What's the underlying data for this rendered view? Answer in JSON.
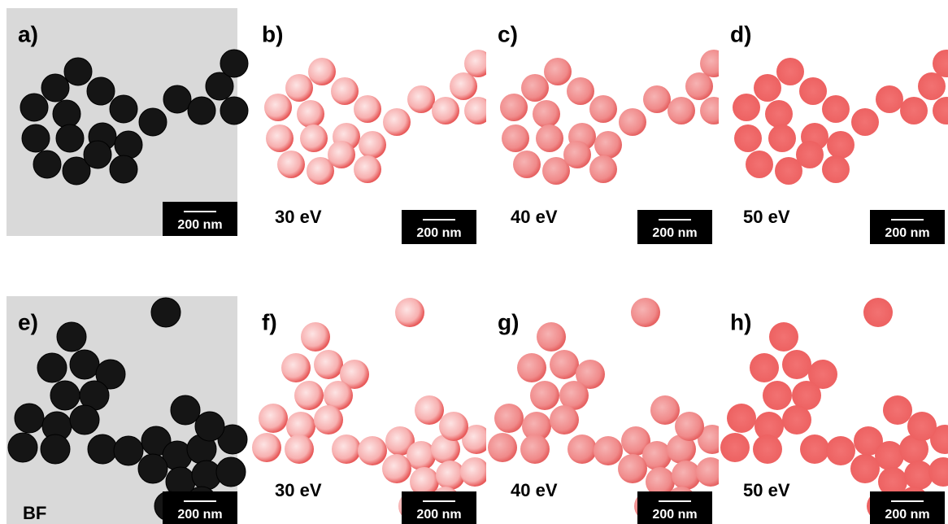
{
  "panels": [
    {
      "label": "a)",
      "scale_bar": "200 nm"
    },
    {
      "label": "b)",
      "caption": "30 eV",
      "scale_bar": "200 nm"
    },
    {
      "label": "c)",
      "caption": "40 eV",
      "scale_bar": "200 nm"
    },
    {
      "label": "d)",
      "caption": "50 eV",
      "scale_bar": "200 nm"
    },
    {
      "label": "e)",
      "caption": "BF",
      "scale_bar": "200 nm"
    },
    {
      "label": "f)",
      "caption": "30 eV",
      "scale_bar": "200 nm"
    },
    {
      "label": "g)",
      "caption": "40 eV",
      "scale_bar": "200 nm"
    },
    {
      "label": "h)",
      "caption": "50 eV",
      "scale_bar": "200 nm"
    }
  ]
}
